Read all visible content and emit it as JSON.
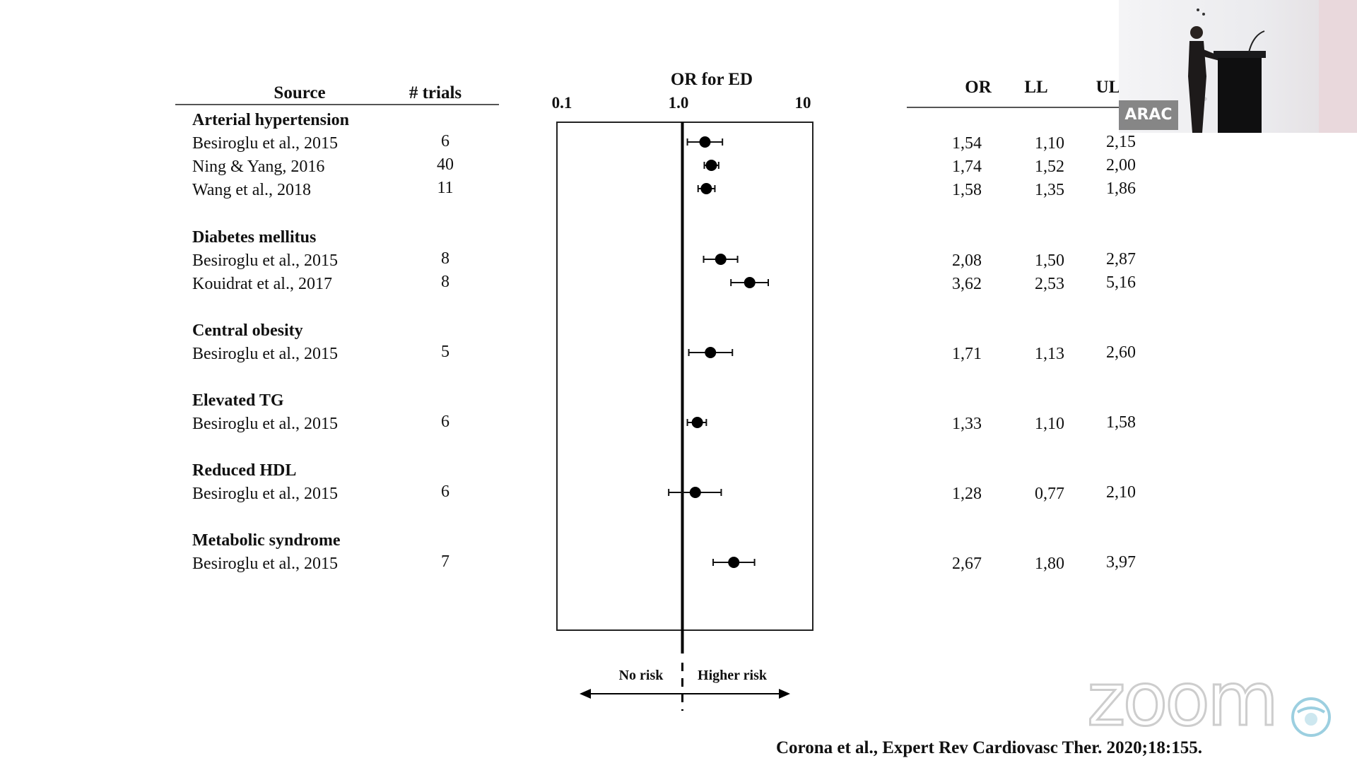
{
  "chart_data": {
    "type": "forest",
    "title": "OR for  ED",
    "x_scale": "log",
    "xlim": [
      0.1,
      10
    ],
    "x_ticks": [
      "0.1",
      "1.0",
      "10"
    ],
    "reference_line": 1.0,
    "columns": {
      "source": "Source",
      "trials": "# trials",
      "or": "OR",
      "ll": "LL",
      "ul": "UL"
    },
    "groups": [
      {
        "name": "Arterial hypertension",
        "studies": [
          {
            "source": "Besiroglu et al., 2015",
            "trials": "6",
            "or": "1,54",
            "ll": "1,10",
            "ul": "2,15",
            "or_val": 1.54,
            "ll_val": 1.1,
            "ul_val": 2.15
          },
          {
            "source": "Ning & Yang, 2016",
            "trials": "40",
            "or": "1,74",
            "ll": "1,52",
            "ul": "2,00",
            "or_val": 1.74,
            "ll_val": 1.52,
            "ul_val": 2.0
          },
          {
            "source": "Wang et al., 2018",
            "trials": "11",
            "or": "1,58",
            "ll": "1,35",
            "ul": "1,86",
            "or_val": 1.58,
            "ll_val": 1.35,
            "ul_val": 1.86
          }
        ]
      },
      {
        "name": "Diabetes mellitus",
        "studies": [
          {
            "source": "Besiroglu et al., 2015",
            "trials": "8",
            "or": "2,08",
            "ll": "1,50",
            "ul": "2,87",
            "or_val": 2.08,
            "ll_val": 1.5,
            "ul_val": 2.87
          },
          {
            "source": "Kouidrat et al., 2017",
            "trials": "8",
            "or": "3,62",
            "ll": "2,53",
            "ul": "5,16",
            "or_val": 3.62,
            "ll_val": 2.53,
            "ul_val": 5.16
          }
        ]
      },
      {
        "name": "Central obesity",
        "studies": [
          {
            "source": "Besiroglu et al., 2015",
            "trials": "5",
            "or": "1,71",
            "ll": "1,13",
            "ul": "2,60",
            "or_val": 1.71,
            "ll_val": 1.13,
            "ul_val": 2.6
          }
        ]
      },
      {
        "name": "Elevated TG",
        "studies": [
          {
            "source": "Besiroglu et al., 2015",
            "trials": "6",
            "or": "1,33",
            "ll": "1,10",
            "ul": "1,58",
            "or_val": 1.33,
            "ll_val": 1.1,
            "ul_val": 1.58
          }
        ]
      },
      {
        "name": "Reduced HDL",
        "studies": [
          {
            "source": "Besiroglu et al., 2015",
            "trials": "6",
            "or": "1,28",
            "ll": "0,77",
            "ul": "2,10",
            "or_val": 1.28,
            "ll_val": 0.77,
            "ul_val": 2.1
          }
        ]
      },
      {
        "name": "Metabolic syndrome",
        "studies": [
          {
            "source": "Besiroglu et al., 2015",
            "trials": "7",
            "or": "2,67",
            "ll": "1,80",
            "ul": "3,97",
            "or_val": 2.67,
            "ll_val": 1.8,
            "ul_val": 3.97
          }
        ]
      }
    ],
    "direction_labels": {
      "left": "No risk",
      "right": "Higher risk"
    },
    "citation": "Corona et al., Expert Rev Cardiovasc Ther. 2020;18:155."
  },
  "overlay": {
    "badge": "ARAC",
    "logo": "zoom"
  },
  "colors": {
    "ink": "#111111",
    "rule": "#555555"
  }
}
